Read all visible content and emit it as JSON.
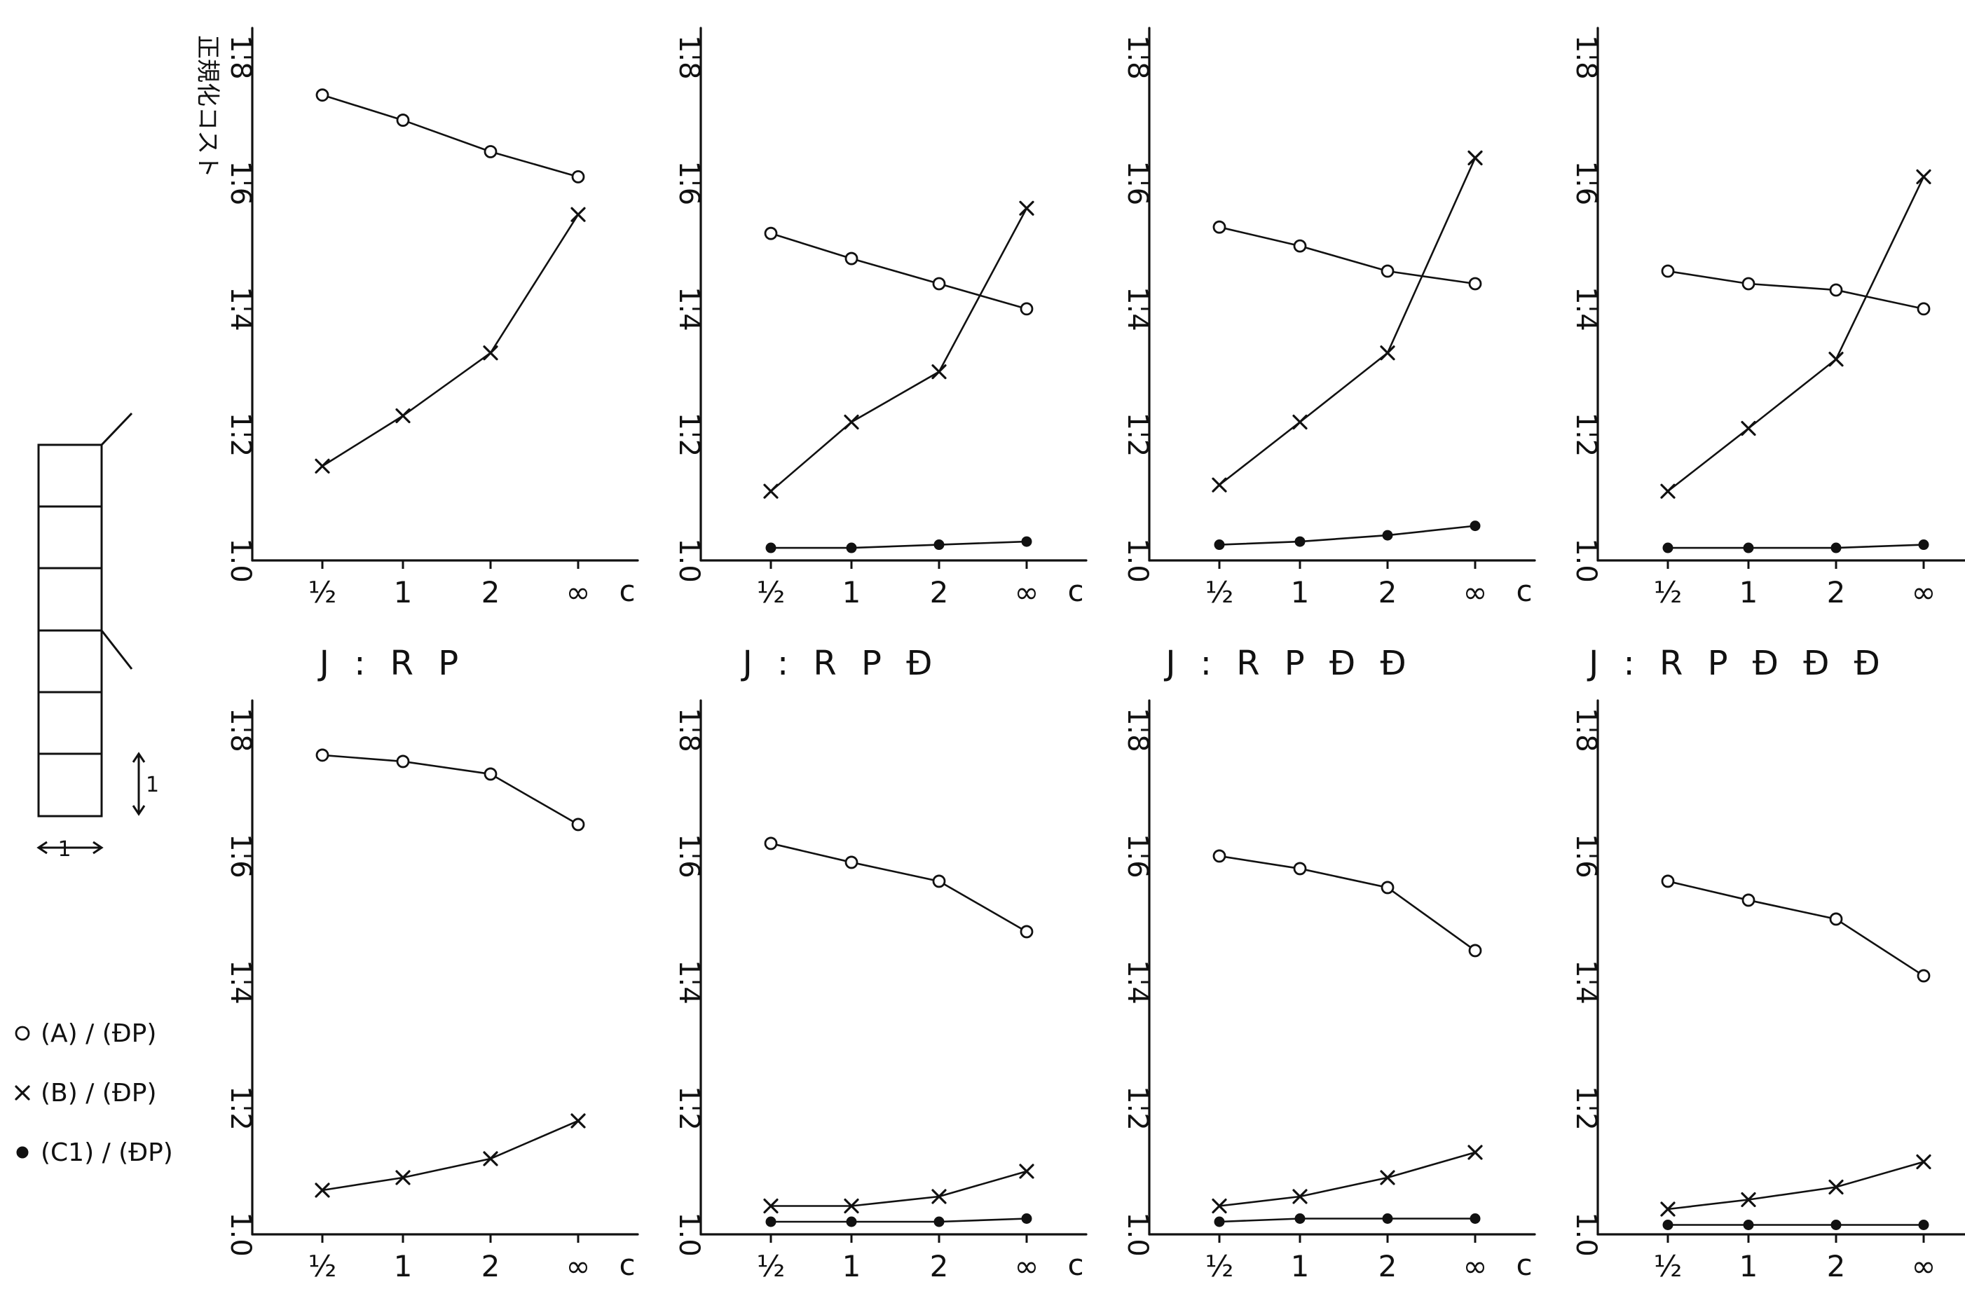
{
  "chart_data": [
    {
      "type": "line",
      "panel": "top-1",
      "x": [
        "½",
        "1",
        "2",
        "∞"
      ],
      "xlabel": "c",
      "ylabel": "正規化コスト",
      "ylim": [
        1.0,
        1.8
      ],
      "yticks": [
        "1.0",
        "1.2",
        "1.4",
        "1.6",
        "1.8"
      ],
      "series": [
        {
          "marker": "circle",
          "values": [
            1.74,
            1.7,
            1.65,
            1.61
          ]
        },
        {
          "marker": "x",
          "values": [
            1.15,
            1.23,
            1.33,
            1.55
          ]
        }
      ]
    },
    {
      "type": "line",
      "panel": "top-2",
      "x": [
        "½",
        "1",
        "2",
        "∞"
      ],
      "xlabel": "c",
      "ylim": [
        1.0,
        1.8
      ],
      "yticks": [
        "1.0",
        "1.2",
        "1.4",
        "1.6",
        "1.8"
      ],
      "series": [
        {
          "marker": "circle",
          "values": [
            1.52,
            1.48,
            1.44,
            1.4
          ]
        },
        {
          "marker": "x",
          "values": [
            1.11,
            1.22,
            1.3,
            1.56
          ]
        },
        {
          "marker": "dot",
          "values": [
            1.02,
            1.02,
            1.025,
            1.03
          ]
        }
      ]
    },
    {
      "type": "line",
      "panel": "top-3",
      "x": [
        "½",
        "1",
        "2",
        "∞"
      ],
      "xlabel": "c",
      "ylim": [
        1.0,
        1.8
      ],
      "yticks": [
        "1.0",
        "1.2",
        "1.4",
        "1.6",
        "1.8"
      ],
      "series": [
        {
          "marker": "circle",
          "values": [
            1.53,
            1.5,
            1.46,
            1.44
          ]
        },
        {
          "marker": "x",
          "values": [
            1.12,
            1.22,
            1.33,
            1.64
          ]
        },
        {
          "marker": "dot",
          "values": [
            1.025,
            1.03,
            1.04,
            1.055
          ]
        }
      ]
    },
    {
      "type": "line",
      "panel": "top-4",
      "x": [
        "½",
        "1",
        "2",
        "∞"
      ],
      "xlabel": "c",
      "ylim": [
        1.0,
        1.8
      ],
      "yticks": [
        "1.0",
        "1.2",
        "1.4",
        "1.6",
        "1.8"
      ],
      "series": [
        {
          "marker": "circle",
          "values": [
            1.46,
            1.44,
            1.43,
            1.4
          ]
        },
        {
          "marker": "x",
          "values": [
            1.11,
            1.21,
            1.32,
            1.61
          ]
        },
        {
          "marker": "dot",
          "values": [
            1.02,
            1.02,
            1.02,
            1.025
          ]
        }
      ]
    },
    {
      "type": "line",
      "panel": "bottom-1",
      "x": [
        "½",
        "1",
        "2",
        "∞"
      ],
      "xlabel": "c",
      "ylim": [
        1.0,
        1.8
      ],
      "yticks": [
        "1.0",
        "1.2",
        "1.4",
        "1.6",
        "1.8"
      ],
      "series": [
        {
          "marker": "circle",
          "values": [
            1.76,
            1.75,
            1.73,
            1.65
          ]
        },
        {
          "marker": "x",
          "values": [
            1.07,
            1.09,
            1.12,
            1.18
          ]
        }
      ]
    },
    {
      "type": "line",
      "panel": "bottom-2",
      "x": [
        "½",
        "1",
        "2",
        "∞"
      ],
      "xlabel": "c",
      "ylim": [
        1.0,
        1.8
      ],
      "yticks": [
        "1.0",
        "1.2",
        "1.4",
        "1.6",
        "1.8"
      ],
      "series": [
        {
          "marker": "circle",
          "values": [
            1.62,
            1.59,
            1.56,
            1.48
          ]
        },
        {
          "marker": "x",
          "values": [
            1.045,
            1.045,
            1.06,
            1.1
          ]
        },
        {
          "marker": "dot",
          "values": [
            1.02,
            1.02,
            1.02,
            1.025
          ]
        }
      ]
    },
    {
      "type": "line",
      "panel": "bottom-3",
      "x": [
        "½",
        "1",
        "2",
        "∞"
      ],
      "xlabel": "c",
      "ylim": [
        1.0,
        1.8
      ],
      "yticks": [
        "1.0",
        "1.2",
        "1.4",
        "1.6",
        "1.8"
      ],
      "series": [
        {
          "marker": "circle",
          "values": [
            1.6,
            1.58,
            1.55,
            1.45
          ]
        },
        {
          "marker": "x",
          "values": [
            1.045,
            1.06,
            1.09,
            1.13
          ]
        },
        {
          "marker": "dot",
          "values": [
            1.02,
            1.025,
            1.025,
            1.025
          ]
        }
      ]
    },
    {
      "type": "line",
      "panel": "bottom-4",
      "x": [
        "½",
        "1",
        "2",
        "∞"
      ],
      "xlabel": "c",
      "ylim": [
        1.0,
        1.8
      ],
      "yticks": [
        "1.0",
        "1.2",
        "1.4",
        "1.6",
        "1.8"
      ],
      "series": [
        {
          "marker": "circle",
          "values": [
            1.56,
            1.53,
            1.5,
            1.41
          ]
        },
        {
          "marker": "x",
          "values": [
            1.04,
            1.055,
            1.075,
            1.115
          ]
        },
        {
          "marker": "dot",
          "values": [
            1.015,
            1.015,
            1.015,
            1.015
          ]
        }
      ]
    }
  ],
  "column_titles": [
    "J : R P",
    "J : R P Ð",
    "J : R P Ð Ð",
    "J : R P Ð Ð Ð"
  ],
  "legend": [
    {
      "marker": "circle",
      "label": "(A) / (ÐP)"
    },
    {
      "marker": "x",
      "label": "(B) / (ÐP)"
    },
    {
      "marker": "dot",
      "label": "(C1) / (ÐP)"
    }
  ],
  "diagram": {
    "width_label": "1",
    "height_label": "1"
  }
}
